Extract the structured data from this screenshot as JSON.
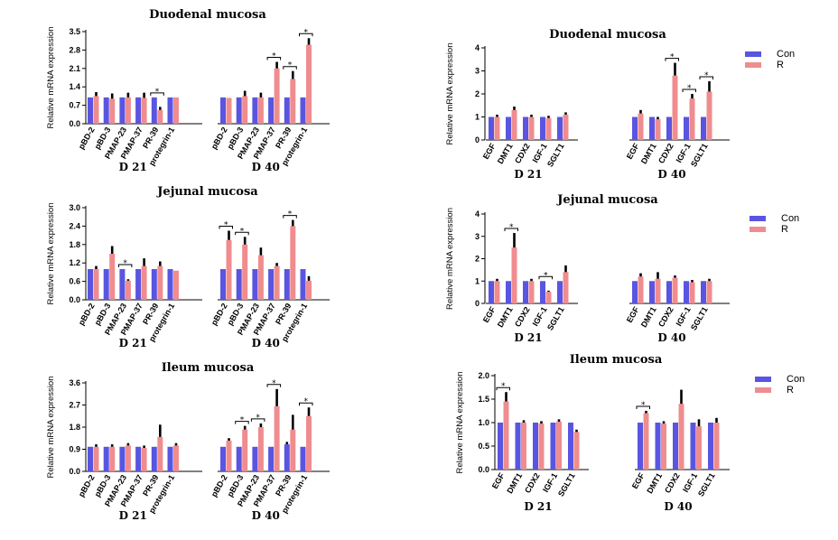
{
  "legend": {
    "con_label": "Con",
    "r_label": "R"
  },
  "colors": {
    "con": "#5a55e0",
    "r": "#ef8c8f"
  },
  "chart_data": [
    {
      "type": "bar",
      "title": "Duodenal mucosa",
      "ylabel": "Relative mRNA expression",
      "ylim": [
        0,
        3.5
      ],
      "yticks": [
        "0.0",
        "0.7",
        "1.4",
        "2.1",
        "2.8",
        "3.5"
      ],
      "legend": false,
      "groups": [
        {
          "label": "D 21",
          "categories": [
            "pBD-2",
            "pBD-3",
            "PMAP-23",
            "PMAP-37",
            "PR-39",
            "protegrin-1"
          ],
          "series": [
            {
              "name": "Con",
              "values": [
                1.0,
                1.0,
                1.0,
                1.0,
                1.0,
                1.0
              ],
              "errors": [
                0.0,
                0.0,
                0.0,
                0.0,
                0.0,
                0.0
              ]
            },
            {
              "name": "R",
              "values": [
                1.05,
                0.95,
                1.0,
                0.98,
                0.52,
                1.0
              ],
              "errors": [
                0.15,
                0.2,
                0.18,
                0.2,
                0.12,
                0.0
              ]
            }
          ],
          "significant": [
            4
          ]
        },
        {
          "label": "D 40",
          "categories": [
            "pBD-2",
            "pBD-3",
            "PMAP-23",
            "PMAP-37",
            "PR-39",
            "protegrin-1"
          ],
          "series": [
            {
              "name": "Con",
              "values": [
                1.0,
                1.0,
                1.0,
                1.0,
                1.0,
                1.0
              ],
              "errors": [
                0.0,
                0.0,
                0.0,
                0.0,
                0.0,
                0.0
              ]
            },
            {
              "name": "R",
              "values": [
                0.98,
                1.05,
                1.0,
                2.1,
                1.7,
                3.0
              ],
              "errors": [
                0.0,
                0.2,
                0.18,
                0.25,
                0.3,
                0.25
              ]
            }
          ],
          "significant": [
            3,
            4,
            5
          ]
        }
      ]
    },
    {
      "type": "bar",
      "title": "Duodenal mucosa",
      "ylabel": "Relative mRNA expression",
      "ylim": [
        0,
        4
      ],
      "yticks": [
        "0",
        "1",
        "2",
        "3",
        "4"
      ],
      "legend": true,
      "groups": [
        {
          "label": "D 21",
          "categories": [
            "EGF",
            "DMT1",
            "CDX2",
            "IGF-1",
            "SGLT1"
          ],
          "series": [
            {
              "name": "Con",
              "values": [
                1.0,
                1.0,
                1.0,
                1.0,
                1.0
              ],
              "errors": [
                0.0,
                0.0,
                0.0,
                0.0,
                0.0
              ]
            },
            {
              "name": "R",
              "values": [
                1.0,
                1.3,
                1.0,
                0.95,
                1.1
              ],
              "errors": [
                0.1,
                0.15,
                0.1,
                0.1,
                0.1
              ]
            }
          ],
          "significant": []
        },
        {
          "label": "D 40",
          "categories": [
            "EGF",
            "DMT1",
            "CDX2",
            "IGF-1",
            "SGLT1"
          ],
          "series": [
            {
              "name": "Con",
              "values": [
                1.0,
                1.0,
                1.0,
                1.0,
                1.0
              ],
              "errors": [
                0.0,
                0.0,
                0.0,
                0.0,
                0.0
              ]
            },
            {
              "name": "R",
              "values": [
                1.15,
                0.9,
                2.8,
                1.8,
                2.1
              ],
              "errors": [
                0.15,
                0.1,
                0.55,
                0.2,
                0.45
              ]
            }
          ],
          "significant": [
            2,
            3,
            4
          ]
        }
      ]
    },
    {
      "type": "bar",
      "title": "Jejunal mucosa",
      "ylabel": "Relative mRNA expression",
      "ylim": [
        0,
        3.0
      ],
      "yticks": [
        "0.0",
        "0.6",
        "1.2",
        "1.8",
        "2.4",
        "3.0"
      ],
      "legend": false,
      "groups": [
        {
          "label": "D 21",
          "categories": [
            "pBD-2",
            "pBD-3",
            "PMAP-23",
            "PMAP-37",
            "PR-39",
            "protegrin-1"
          ],
          "series": [
            {
              "name": "Con",
              "values": [
                1.0,
                1.0,
                1.0,
                1.0,
                1.0,
                1.0
              ],
              "errors": [
                0.0,
                0.0,
                0.0,
                0.0,
                0.0,
                0.0
              ]
            },
            {
              "name": "R",
              "values": [
                1.0,
                1.5,
                0.62,
                1.1,
                1.1,
                0.95
              ],
              "errors": [
                0.1,
                0.25,
                0.05,
                0.25,
                0.15,
                0.0
              ]
            }
          ],
          "significant": [
            2
          ]
        },
        {
          "label": "D 40",
          "categories": [
            "pBD-2",
            "pBD-3",
            "PMAP-23",
            "PMAP-37",
            "PR-39",
            "protegrin-1"
          ],
          "series": [
            {
              "name": "Con",
              "values": [
                1.0,
                1.0,
                1.0,
                1.0,
                1.0,
                1.0
              ],
              "errors": [
                0.0,
                0.0,
                0.0,
                0.0,
                0.0,
                0.0
              ]
            },
            {
              "name": "R",
              "values": [
                1.95,
                1.8,
                1.45,
                1.1,
                2.4,
                0.62
              ],
              "errors": [
                0.3,
                0.25,
                0.25,
                0.1,
                0.2,
                0.15
              ]
            }
          ],
          "significant": [
            0,
            1,
            4
          ]
        }
      ]
    },
    {
      "type": "bar",
      "title": "Jejunal mucosa",
      "ylabel": "Relative mRNA expression",
      "ylim": [
        0,
        4
      ],
      "yticks": [
        "0",
        "1",
        "2",
        "3",
        "4"
      ],
      "legend": true,
      "groups": [
        {
          "label": "D 21",
          "categories": [
            "EGF",
            "DMT1",
            "CDX2",
            "IGF-1",
            "SGLT1"
          ],
          "series": [
            {
              "name": "Con",
              "values": [
                1.0,
                1.0,
                1.0,
                1.0,
                1.0
              ],
              "errors": [
                0.0,
                0.0,
                0.0,
                0.0,
                0.0
              ]
            },
            {
              "name": "R",
              "values": [
                1.0,
                2.5,
                1.0,
                0.52,
                1.4
              ],
              "errors": [
                0.1,
                0.65,
                0.1,
                0.05,
                0.3
              ]
            }
          ],
          "significant": [
            1,
            3
          ]
        },
        {
          "label": "D 40",
          "categories": [
            "EGF",
            "DMT1",
            "CDX2",
            "IGF-1",
            "SGLT1"
          ],
          "series": [
            {
              "name": "Con",
              "values": [
                1.0,
                1.0,
                1.0,
                1.0,
                1.0
              ],
              "errors": [
                0.0,
                0.0,
                0.0,
                0.0,
                0.0
              ]
            },
            {
              "name": "R",
              "values": [
                1.2,
                1.1,
                1.15,
                0.95,
                1.0
              ],
              "errors": [
                0.15,
                0.3,
                0.1,
                0.1,
                0.1
              ]
            }
          ],
          "significant": []
        }
      ]
    },
    {
      "type": "bar",
      "title": "Ileum mucosa",
      "ylabel": "Relative mRNA expression",
      "ylim": [
        0,
        3.6
      ],
      "yticks": [
        "0.0",
        "0.9",
        "1.8",
        "2.7",
        "3.6"
      ],
      "legend": false,
      "groups": [
        {
          "label": "D 21",
          "categories": [
            "pBD-2",
            "pBD-3",
            "PMAP-23",
            "PMAP-37",
            "PR-39",
            "protegrin-1"
          ],
          "series": [
            {
              "name": "Con",
              "values": [
                1.0,
                1.0,
                1.0,
                1.0,
                1.0,
                1.0
              ],
              "errors": [
                0.0,
                0.0,
                0.0,
                0.0,
                0.0,
                0.0
              ]
            },
            {
              "name": "R",
              "values": [
                1.0,
                1.0,
                1.05,
                0.95,
                1.4,
                1.05
              ],
              "errors": [
                0.1,
                0.1,
                0.1,
                0.1,
                0.5,
                0.1
              ]
            }
          ],
          "significant": []
        },
        {
          "label": "D 40",
          "categories": [
            "pBD-2",
            "pBD-3",
            "PMAP-23",
            "PMAP-37",
            "PR-39",
            "protegrin-1"
          ],
          "series": [
            {
              "name": "Con",
              "values": [
                1.0,
                1.0,
                1.0,
                1.0,
                1.1,
                1.0
              ],
              "errors": [
                0.0,
                0.0,
                0.0,
                0.0,
                0.1,
                0.0
              ]
            },
            {
              "name": "R",
              "values": [
                1.25,
                1.7,
                1.8,
                2.65,
                1.7,
                2.25
              ],
              "errors": [
                0.1,
                0.15,
                0.15,
                0.7,
                0.6,
                0.35
              ]
            }
          ],
          "significant": [
            1,
            2,
            3,
            5
          ]
        }
      ]
    },
    {
      "type": "bar",
      "title": "Ileum mucosa",
      "ylabel": "Relative mRNA expression",
      "ylim": [
        0,
        2.0
      ],
      "yticks": [
        "0.0",
        "0.5",
        "1.0",
        "1.5",
        "2.0"
      ],
      "legend": true,
      "groups": [
        {
          "label": "D 21",
          "categories": [
            "EGF",
            "DMT1",
            "CDX2",
            "IGF-1",
            "SGLT1"
          ],
          "series": [
            {
              "name": "Con",
              "values": [
                1.0,
                1.0,
                1.0,
                1.0,
                1.0
              ],
              "errors": [
                0.0,
                0.0,
                0.0,
                0.0,
                0.0
              ]
            },
            {
              "name": "R",
              "values": [
                1.45,
                1.0,
                0.98,
                1.02,
                0.8
              ],
              "errors": [
                0.2,
                0.05,
                0.05,
                0.05,
                0.05
              ]
            }
          ],
          "significant": [
            0
          ]
        },
        {
          "label": "D 40",
          "categories": [
            "EGF",
            "DMT1",
            "CDX2",
            "IGF-1",
            "SGLT1"
          ],
          "series": [
            {
              "name": "Con",
              "values": [
                1.0,
                1.0,
                1.0,
                1.0,
                1.0
              ],
              "errors": [
                0.0,
                0.0,
                0.0,
                0.0,
                0.0
              ]
            },
            {
              "name": "R",
              "values": [
                1.2,
                0.98,
                1.4,
                0.92,
                1.0
              ],
              "errors": [
                0.05,
                0.05,
                0.3,
                0.15,
                0.1
              ]
            }
          ],
          "significant": [
            0
          ]
        }
      ]
    }
  ]
}
